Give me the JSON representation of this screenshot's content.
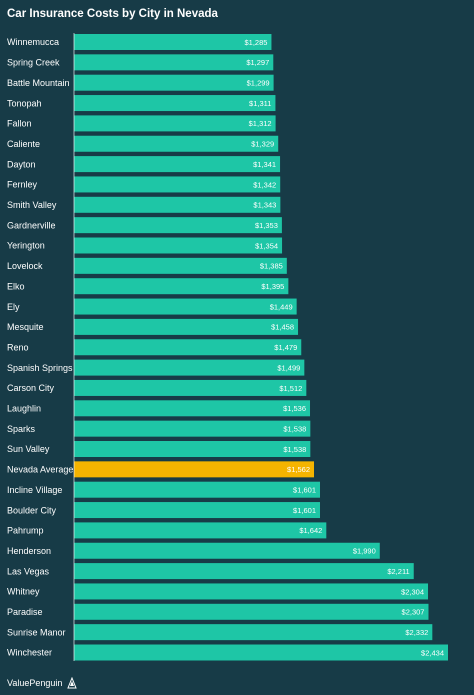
{
  "chart_data": {
    "type": "bar",
    "orientation": "horizontal",
    "title": "Car Insurance Costs by City in Nevada",
    "categories": [
      "Winnemucca",
      "Spring Creek",
      "Battle Mountain",
      "Tonopah",
      "Fallon",
      "Caliente",
      "Dayton",
      "Fernley",
      "Smith Valley",
      "Gardnerville",
      "Yerington",
      "Lovelock",
      "Elko",
      "Ely",
      "Mesquite",
      "Reno",
      "Spanish Springs",
      "Carson City",
      "Laughlin",
      "Sparks",
      "Sun Valley",
      "Nevada Average",
      "Incline Village",
      "Boulder City",
      "Pahrump",
      "Henderson",
      "Las Vegas",
      "Whitney",
      "Paradise",
      "Sunrise Manor",
      "Winchester"
    ],
    "values": [
      1285,
      1297,
      1299,
      1311,
      1312,
      1329,
      1341,
      1342,
      1343,
      1353,
      1354,
      1385,
      1395,
      1449,
      1458,
      1479,
      1499,
      1512,
      1536,
      1538,
      1538,
      1562,
      1601,
      1601,
      1642,
      1990,
      2211,
      2304,
      2307,
      2332,
      2434
    ],
    "value_labels": [
      "$1,285",
      "$1,297",
      "$1,299",
      "$1,311",
      "$1,312",
      "$1,329",
      "$1,341",
      "$1,342",
      "$1,343",
      "$1,353",
      "$1,354",
      "$1,385",
      "$1,395",
      "$1,449",
      "$1,458",
      "$1,479",
      "$1,499",
      "$1,512",
      "$1,536",
      "$1,538",
      "$1,538",
      "$1,562",
      "$1,601",
      "$1,601",
      "$1,642",
      "$1,990",
      "$2,211",
      "$2,304",
      "$2,307",
      "$2,332",
      "$2,434"
    ],
    "highlight": "Nevada Average",
    "xlim": [
      0,
      2434
    ],
    "grid": false,
    "legend": "none",
    "colors": {
      "bar": "#1ec6a6",
      "highlight": "#f5b400",
      "background": "#173b47",
      "text": "#ffffff",
      "axis": "#ffffff"
    }
  },
  "brand": {
    "name": "ValuePenguin",
    "icon": "valuepenguin-logo-icon"
  }
}
